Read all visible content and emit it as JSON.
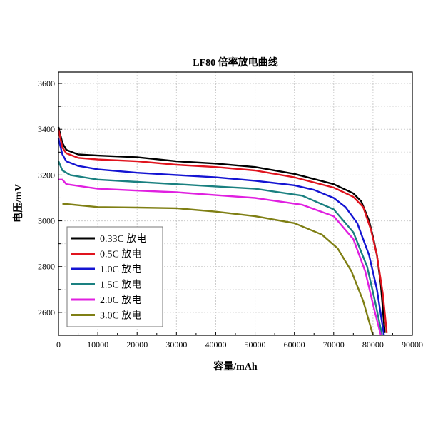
{
  "chart_data": {
    "type": "line",
    "title": "LF80 倍率放电曲线",
    "xlabel": "容量/mAh",
    "ylabel": "电压/mV",
    "xlim": [
      0,
      90000
    ],
    "ylim": [
      2500,
      3650
    ],
    "xticks": [
      0,
      10000,
      20000,
      30000,
      40000,
      50000,
      60000,
      70000,
      80000,
      90000
    ],
    "yticks": [
      2600,
      2800,
      3000,
      3200,
      3400,
      3600
    ],
    "grid": true,
    "legend_position": "bottom-left",
    "series": [
      {
        "name": "0.33C  放电",
        "color": "#000000",
        "x": [
          0,
          1000,
          2000,
          5000,
          10000,
          20000,
          30000,
          40000,
          50000,
          60000,
          70000,
          75000,
          77000,
          79000,
          80000,
          81000,
          82000,
          83000
        ],
        "y": [
          3410,
          3340,
          3310,
          3290,
          3285,
          3278,
          3260,
          3250,
          3235,
          3205,
          3160,
          3120,
          3085,
          3000,
          2930,
          2850,
          2720,
          2510
        ]
      },
      {
        "name": "0.5C   放电",
        "color": "#e0141e",
        "x": [
          0,
          1000,
          2000,
          5000,
          10000,
          20000,
          30000,
          40000,
          50000,
          60000,
          70000,
          75000,
          77500,
          79500,
          81000,
          82500,
          83500
        ],
        "y": [
          3400,
          3320,
          3295,
          3275,
          3268,
          3260,
          3245,
          3235,
          3220,
          3190,
          3145,
          3105,
          3060,
          2960,
          2850,
          2680,
          2510
        ]
      },
      {
        "name": "1.0C   放电",
        "color": "#1414d2",
        "x": [
          0,
          1000,
          2000,
          5000,
          10000,
          20000,
          30000,
          40000,
          50000,
          60000,
          65000,
          70000,
          73000,
          76000,
          79000,
          81000,
          82800
        ],
        "y": [
          3360,
          3290,
          3260,
          3240,
          3225,
          3210,
          3200,
          3190,
          3175,
          3155,
          3135,
          3100,
          3060,
          2990,
          2850,
          2700,
          2500
        ]
      },
      {
        "name": "1.5C   放电",
        "color": "#1a8080",
        "x": [
          0,
          1000,
          3000,
          10000,
          20000,
          30000,
          40000,
          50000,
          62000,
          70000,
          75000,
          78500,
          80500,
          82300
        ],
        "y": [
          3260,
          3220,
          3200,
          3180,
          3170,
          3160,
          3150,
          3140,
          3110,
          3050,
          2950,
          2800,
          2650,
          2500
        ]
      },
      {
        "name": "2.0C   放电",
        "color": "#e020e0",
        "x": [
          0,
          1000,
          2000,
          10000,
          20000,
          30000,
          40000,
          50000,
          62000,
          70000,
          75000,
          78000,
          80500,
          82000
        ],
        "y": [
          3180,
          3180,
          3160,
          3140,
          3132,
          3125,
          3112,
          3100,
          3070,
          3020,
          2920,
          2780,
          2600,
          2500
        ]
      },
      {
        "name": "3.0C   放电",
        "color": "#7f7f14",
        "x": [
          1000,
          10000,
          20000,
          30000,
          40000,
          50000,
          60000,
          67000,
          71000,
          74500,
          77500,
          80000
        ],
        "y": [
          3075,
          3060,
          3058,
          3055,
          3040,
          3020,
          2990,
          2940,
          2880,
          2780,
          2650,
          2500
        ]
      }
    ]
  }
}
